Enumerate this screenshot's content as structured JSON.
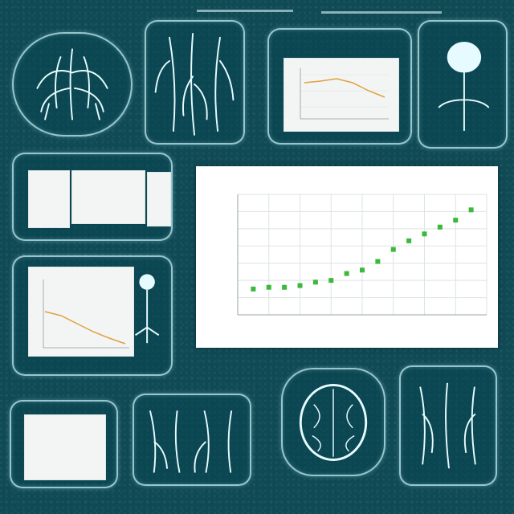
{
  "chart_data": {
    "type": "scatter",
    "title": "",
    "xlabel": "",
    "ylabel": "",
    "x": [
      1,
      2,
      3,
      4,
      5,
      6,
      7,
      8,
      9,
      10,
      11,
      12,
      13,
      14,
      15
    ],
    "y": [
      1.5,
      1.6,
      1.6,
      1.7,
      1.9,
      2.0,
      2.4,
      2.6,
      3.1,
      3.8,
      4.3,
      4.7,
      5.1,
      5.5,
      6.1
    ],
    "ylim": [
      0,
      7
    ],
    "xlim": [
      0,
      16
    ],
    "grid": true,
    "series_color": "#3cb83c"
  },
  "colors": {
    "background": "#0f4a55",
    "glow": "#c8f0f5"
  }
}
